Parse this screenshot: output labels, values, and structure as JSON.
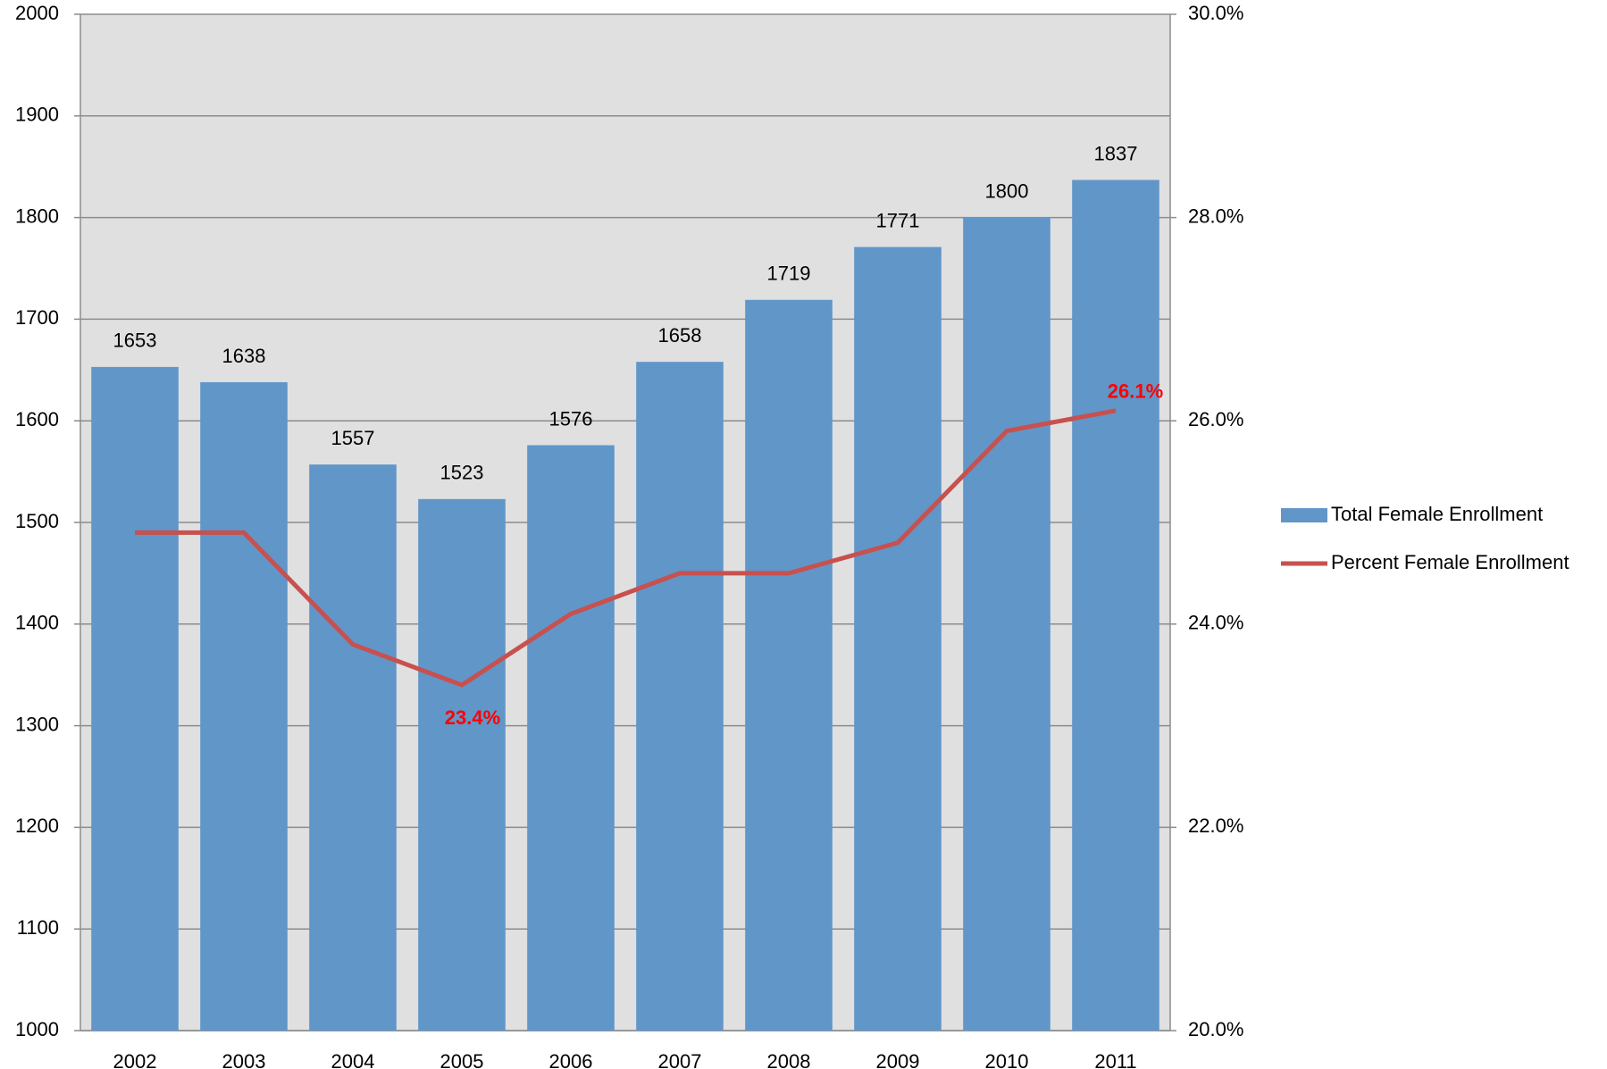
{
  "chart_data": {
    "type": "bar-line",
    "categories": [
      "2002",
      "2003",
      "2004",
      "2005",
      "2006",
      "2007",
      "2008",
      "2009",
      "2010",
      "2011"
    ],
    "series": [
      {
        "name": "Total Female Enrollment",
        "color": "#6196c9",
        "type": "bar",
        "values": [
          1653,
          1638,
          1557,
          1523,
          1576,
          1658,
          1719,
          1771,
          1800,
          1837
        ]
      },
      {
        "name": "Percent Female Enrollment",
        "color": "#c8504e",
        "type": "line",
        "axis": "y2",
        "values": [
          24.9,
          24.9,
          23.8,
          23.4,
          24.1,
          24.5,
          24.5,
          24.8,
          25.9,
          26.1
        ],
        "value_labels": [
          null,
          null,
          null,
          "23.4%",
          null,
          null,
          null,
          null,
          null,
          "26.1%"
        ]
      }
    ],
    "ylim": [
      1000,
      2000
    ],
    "yticks": [
      1000,
      1100,
      1200,
      1300,
      1400,
      1500,
      1600,
      1700,
      1800,
      1900,
      2000
    ],
    "y2lim": [
      20,
      30
    ],
    "y2ticks": [
      {
        "value": 20,
        "label": "20.0%"
      },
      {
        "value": 22,
        "label": "22.0%"
      },
      {
        "value": 24,
        "label": "24.0%"
      },
      {
        "value": 26,
        "label": "26.0%"
      },
      {
        "value": 28,
        "label": "28.0%"
      },
      {
        "value": 30,
        "label": "30.0%"
      }
    ],
    "grid": true,
    "legend": "right"
  }
}
